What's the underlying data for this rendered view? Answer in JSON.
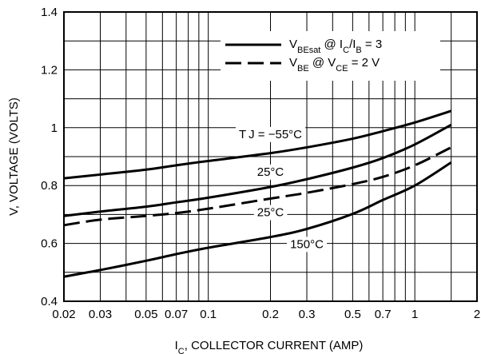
{
  "chart_data": {
    "type": "line",
    "xscale": "log",
    "xlim": [
      0.02,
      2
    ],
    "ylim": [
      0.4,
      1.4
    ],
    "grid": true,
    "legend_placement": "top-right",
    "x_ticks": [
      {
        "value": 0.02,
        "label": "0.02"
      },
      {
        "value": 0.03,
        "label": "0.03"
      },
      {
        "value": 0.05,
        "label": "0.05"
      },
      {
        "value": 0.07,
        "label": "0.07"
      },
      {
        "value": 0.1,
        "label": "0.1"
      },
      {
        "value": 0.2,
        "label": "0.2"
      },
      {
        "value": 0.3,
        "label": "0.3"
      },
      {
        "value": 0.5,
        "label": "0.5"
      },
      {
        "value": 0.7,
        "label": "0.7"
      },
      {
        "value": 1,
        "label": "1"
      },
      {
        "value": 2,
        "label": "2"
      }
    ],
    "y_ticks": [
      {
        "value": 0.4,
        "label": "0.4"
      },
      {
        "value": 0.6,
        "label": "0.6"
      },
      {
        "value": 0.8,
        "label": "0.8"
      },
      {
        "value": 1.0,
        "label": "1"
      },
      {
        "value": 1.2,
        "label": "1.2"
      },
      {
        "value": 1.4,
        "label": "1.4"
      }
    ],
    "x_minor_grid": [
      0.04,
      0.06,
      0.08,
      0.09,
      0.4,
      0.6,
      0.8,
      0.9,
      1.5
    ],
    "xlabel": {
      "pre": "I",
      "sub": "C",
      "post": ", COLLECTOR CURRENT (AMP)"
    },
    "ylabel": "V, VOLTAGE (VOLTS)",
    "legend": [
      {
        "style": "solid",
        "parts": [
          {
            "t": "V",
            "sub": false
          },
          {
            "t": "BEsat",
            "sub": true
          },
          {
            "t": " @ I",
            "sub": false
          },
          {
            "t": "C",
            "sub": true
          },
          {
            "t": "/I",
            "sub": false
          },
          {
            "t": "B",
            "sub": true
          },
          {
            "t": " = 3",
            "sub": false
          }
        ]
      },
      {
        "style": "dashed",
        "parts": [
          {
            "t": "V",
            "sub": false
          },
          {
            "t": "BE",
            "sub": true
          },
          {
            "t": " @ V",
            "sub": false
          },
          {
            "t": "CE",
            "sub": true
          },
          {
            "t": " = 2 V",
            "sub": false
          }
        ]
      }
    ],
    "series": [
      {
        "style": "solid",
        "label": "T J = −55°C",
        "x": [
          0.02,
          0.03,
          0.05,
          0.07,
          0.1,
          0.2,
          0.3,
          0.5,
          0.7,
          1.0,
          1.5
        ],
        "y": [
          0.825,
          0.838,
          0.855,
          0.87,
          0.885,
          0.912,
          0.932,
          0.962,
          0.988,
          1.018,
          1.058
        ]
      },
      {
        "style": "solid",
        "label": "25°C",
        "x": [
          0.02,
          0.03,
          0.05,
          0.07,
          0.1,
          0.2,
          0.3,
          0.5,
          0.7,
          1.0,
          1.5
        ],
        "y": [
          0.695,
          0.71,
          0.727,
          0.742,
          0.758,
          0.795,
          0.822,
          0.862,
          0.895,
          0.942,
          1.01
        ]
      },
      {
        "style": "dashed",
        "label": "25°C",
        "x": [
          0.02,
          0.03,
          0.05,
          0.07,
          0.1,
          0.2,
          0.3,
          0.5,
          0.7,
          1.0,
          1.5
        ],
        "y": [
          0.663,
          0.682,
          0.695,
          0.705,
          0.72,
          0.755,
          0.775,
          0.805,
          0.83,
          0.87,
          0.932
        ]
      },
      {
        "style": "solid",
        "label": "150°C",
        "x": [
          0.02,
          0.03,
          0.05,
          0.07,
          0.1,
          0.2,
          0.3,
          0.5,
          0.7,
          1.0,
          1.5
        ],
        "y": [
          0.485,
          0.508,
          0.54,
          0.563,
          0.585,
          0.622,
          0.65,
          0.702,
          0.75,
          0.8,
          0.88
        ]
      }
    ],
    "annotations": [
      {
        "series": 0,
        "label": "T J = −55°C",
        "at_x": 0.2,
        "at_y": 0.975
      },
      {
        "series": 1,
        "label": "25°C",
        "at_x": 0.2,
        "at_y": 0.845
      },
      {
        "series": 2,
        "label": "25°C",
        "at_x": 0.2,
        "at_y": 0.705
      },
      {
        "series": 3,
        "label": "150°C",
        "at_x": 0.3,
        "at_y": 0.595
      }
    ]
  }
}
